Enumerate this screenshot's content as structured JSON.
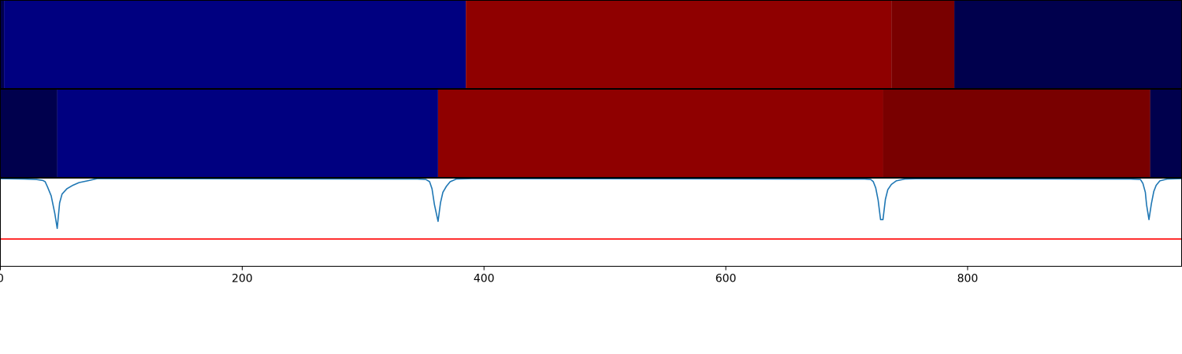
{
  "chart_data": [
    {
      "type": "heatmap",
      "xlim": [
        0,
        977
      ],
      "segments": [
        {
          "start": 0,
          "end": 3,
          "color": "#00004d"
        },
        {
          "start": 3,
          "end": 385,
          "color": "#000080"
        },
        {
          "start": 385,
          "end": 737,
          "color": "#8f0000"
        },
        {
          "start": 737,
          "end": 789,
          "color": "#790000"
        },
        {
          "start": 789,
          "end": 977,
          "color": "#00004d"
        }
      ]
    },
    {
      "type": "heatmap",
      "xlim": [
        0,
        977
      ],
      "segments": [
        {
          "start": 0,
          "end": 47,
          "color": "#00004d"
        },
        {
          "start": 47,
          "end": 362,
          "color": "#000080"
        },
        {
          "start": 362,
          "end": 730,
          "color": "#8f0000"
        },
        {
          "start": 730,
          "end": 951,
          "color": "#790000"
        },
        {
          "start": 951,
          "end": 977,
          "color": "#00004d"
        }
      ]
    },
    {
      "type": "line",
      "xlim": [
        0,
        977
      ],
      "ylim": [
        0,
        1
      ],
      "series": [
        {
          "color": "#1f77b4",
          "points": [
            [
              0,
              0.995
            ],
            [
              20,
              0.99
            ],
            [
              30,
              0.985
            ],
            [
              35,
              0.975
            ],
            [
              37,
              0.96
            ],
            [
              39,
              0.9
            ],
            [
              42,
              0.8
            ],
            [
              45,
              0.6
            ],
            [
              47,
              0.43
            ],
            [
              49,
              0.72
            ],
            [
              51,
              0.82
            ],
            [
              55,
              0.88
            ],
            [
              60,
              0.92
            ],
            [
              65,
              0.95
            ],
            [
              72,
              0.97
            ],
            [
              80,
              0.995
            ],
            [
              345,
              0.99
            ],
            [
              352,
              0.985
            ],
            [
              355,
              0.96
            ],
            [
              357,
              0.88
            ],
            [
              359,
              0.7
            ],
            [
              362,
              0.51
            ],
            [
              364,
              0.72
            ],
            [
              366,
              0.84
            ],
            [
              369,
              0.91
            ],
            [
              372,
              0.96
            ],
            [
              377,
              0.99
            ],
            [
              390,
              0.995
            ],
            [
              715,
              0.99
            ],
            [
              720,
              0.985
            ],
            [
              722,
              0.96
            ],
            [
              724,
              0.89
            ],
            [
              726,
              0.75
            ],
            [
              728,
              0.53
            ],
            [
              730,
              0.53
            ],
            [
              732,
              0.76
            ],
            [
              734,
              0.87
            ],
            [
              737,
              0.93
            ],
            [
              741,
              0.97
            ],
            [
              748,
              0.99
            ],
            [
              760,
              0.995
            ],
            [
              935,
              0.99
            ],
            [
              943,
              0.985
            ],
            [
              945,
              0.94
            ],
            [
              947,
              0.84
            ],
            [
              948,
              0.7
            ],
            [
              950,
              0.53
            ],
            [
              952,
              0.71
            ],
            [
              954,
              0.85
            ],
            [
              956,
              0.92
            ],
            [
              959,
              0.97
            ],
            [
              965,
              0.99
            ],
            [
              977,
              0.995
            ]
          ]
        },
        {
          "color": "#ff0000",
          "points": [
            [
              0,
              0.31
            ],
            [
              977,
              0.31
            ]
          ]
        }
      ]
    }
  ],
  "x_ticks": [
    {
      "value": 0,
      "label": "0"
    },
    {
      "value": 200,
      "label": "200"
    },
    {
      "value": 400,
      "label": "400"
    },
    {
      "value": 600,
      "label": "600"
    },
    {
      "value": 800,
      "label": "800"
    }
  ]
}
